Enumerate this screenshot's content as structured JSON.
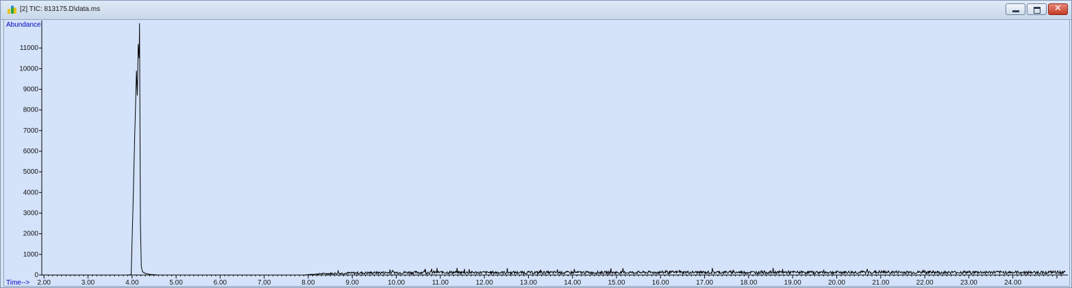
{
  "window": {
    "title": "[2] TIC: 813175.D\\data.ms",
    "icon": "chromatogram-app-icon",
    "buttons": [
      "minimize",
      "maximize",
      "close"
    ]
  },
  "colors": {
    "plot_background": "#d4e3fa",
    "trace": "#000000",
    "axis_label": "#0000c0"
  },
  "chart_data": {
    "type": "line",
    "title": "",
    "ylabel": "Abundance",
    "xlabel": "Time-->",
    "xlim": [
      1.95,
      25.25
    ],
    "ylim": [
      0,
      11500
    ],
    "grid": false,
    "y_ticks": [
      "0",
      "1000",
      "2000",
      "3000",
      "4000",
      "5000",
      "6000",
      "7000",
      "8000",
      "9000",
      "10000",
      "11000"
    ],
    "x_ticks": [
      "2.00",
      "3.00",
      "4.00",
      "5.00",
      "6.00",
      "7.00",
      "8.00",
      "9.00",
      "10.00",
      "11.00",
      "12.00",
      "13.00",
      "14.00",
      "15.00",
      "16.00",
      "17.00",
      "18.00",
      "19.00",
      "20.00",
      "21.00",
      "22.00",
      "23.00",
      "24.00"
    ],
    "series": [
      {
        "x": [
          1.95,
          3.9,
          3.98,
          4.02,
          4.06,
          4.08,
          4.1,
          4.12,
          4.14,
          4.16,
          4.17,
          4.19,
          4.21,
          4.24,
          4.3,
          4.4,
          4.6,
          7.9,
          8.3,
          9.0,
          10.0,
          11.0,
          12.0,
          13.0,
          14.0,
          15.0,
          16.0,
          17.0,
          18.0,
          19.0,
          20.0,
          21.0,
          22.0,
          23.0,
          24.0,
          25.2
        ],
        "y": [
          0,
          0,
          20,
          3200,
          6800,
          8200,
          9900,
          8700,
          11200,
          10500,
          12200,
          2500,
          400,
          150,
          80,
          30,
          0,
          0,
          80,
          120,
          150,
          160,
          150,
          150,
          150,
          150,
          160,
          160,
          160,
          160,
          160,
          170,
          160,
          160,
          160,
          160
        ]
      }
    ],
    "noise_from_x": 7.9
  }
}
